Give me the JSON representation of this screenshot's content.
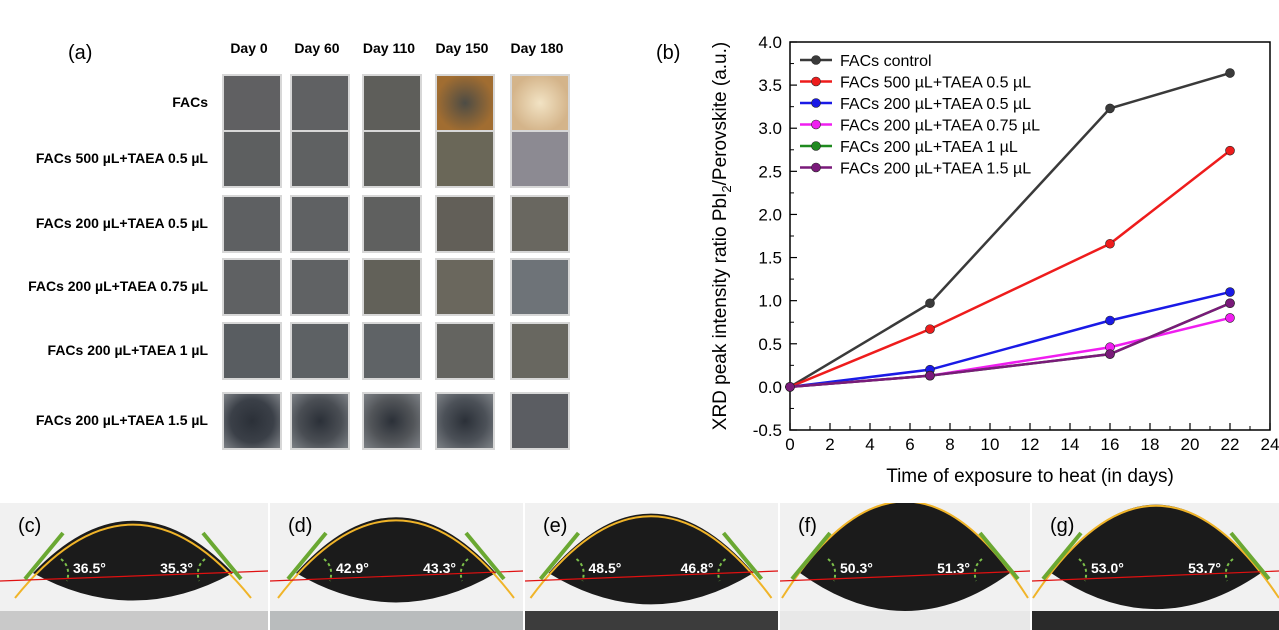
{
  "panel_a": {
    "label": "(a)",
    "days": [
      "Day 0",
      "Day 60",
      "Day 110",
      "Day 150",
      "Day 180"
    ],
    "rows": [
      {
        "label": "FACs",
        "colors": [
          "#606062",
          "#606163",
          "#5e5e5a",
          "#a16d31",
          "#d4b48a"
        ]
      },
      {
        "label": "FACs 500 µL+TAEA 0.5 µL",
        "colors": [
          "#5d5f60",
          "#5f6162",
          "#5f605d",
          "#6a6758",
          "#8c8a92"
        ]
      },
      {
        "label": "FACs 200 µL+TAEA 0.5 µL",
        "colors": [
          "#5e6062",
          "#5f6163",
          "#5f605f",
          "#625f58",
          "#696760"
        ]
      },
      {
        "label": "FACs 200 µL+TAEA 0.75 µL",
        "colors": [
          "#5f6163",
          "#606264",
          "#626159",
          "#6a675d",
          "#6e7378"
        ]
      },
      {
        "label": "FACs 200 µL+TAEA 1 µL",
        "colors": [
          "#595d61",
          "#5d6164",
          "#5f6366",
          "#646460",
          "#686760"
        ]
      },
      {
        "label": "FACs 200 µL+TAEA 1.5 µL",
        "colors": [
          "#3b4048",
          "#4a4e54",
          "#525559",
          "#4c5158",
          "#5b5d62"
        ]
      }
    ]
  },
  "panel_b": {
    "label": "(b)"
  },
  "chart_data": {
    "type": "line",
    "xlabel": "Time of exposure to heat (in days)",
    "ylabel_main": "XRD peak intensity ratio PbI",
    "ylabel_sub": "2",
    "ylabel_tail": "/Perovskite (a.u.)",
    "xlim": [
      0,
      24
    ],
    "ylim": [
      -0.5,
      4.0
    ],
    "xticks": [
      "0",
      "2",
      "4",
      "6",
      "8",
      "10",
      "12",
      "14",
      "16",
      "18",
      "20",
      "22",
      "24"
    ],
    "yticks": [
      "-0.5",
      "0.0",
      "0.5",
      "1.0",
      "1.5",
      "2.0",
      "2.5",
      "3.0",
      "3.5",
      "4.0"
    ],
    "x": [
      0,
      7,
      16,
      22
    ],
    "legend_position": "top-left",
    "series": [
      {
        "name": "FACs control",
        "color": "#3a3a3a",
        "values": [
          0.0,
          0.97,
          3.23,
          3.64
        ]
      },
      {
        "name": "FACs 500 µL+TAEA 0.5 µL",
        "color": "#ee1c1c",
        "values": [
          0.0,
          0.67,
          1.66,
          2.74
        ]
      },
      {
        "name": "FACs 200 µL+TAEA 0.5 µL",
        "color": "#1a1ae6",
        "values": [
          0.0,
          0.2,
          0.77,
          1.1
        ]
      },
      {
        "name": "FACs 200 µL+TAEA 0.75 µL",
        "color": "#f01ef0",
        "values": [
          0.0,
          0.13,
          0.46,
          0.8
        ]
      },
      {
        "name": "FACs 200 µL+TAEA 1 µL",
        "color": "#1f8a1f",
        "values": [
          0.0,
          0.13,
          0.38,
          0.97
        ]
      },
      {
        "name": "FACs 200 µL+TAEA 1.5 µL",
        "color": "#7a1a7a",
        "values": [
          0.0,
          0.13,
          0.38,
          0.97
        ]
      }
    ]
  },
  "droplets": [
    {
      "label": "(c)",
      "left_angle": "36.5°",
      "right_angle": "35.3°",
      "substrate": "#c9c9c9"
    },
    {
      "label": "(d)",
      "left_angle": "42.9°",
      "right_angle": "43.3°",
      "substrate": "#b9bcbd"
    },
    {
      "label": "(e)",
      "left_angle": "48.5°",
      "right_angle": "46.8°",
      "substrate": "#3c3c3c"
    },
    {
      "label": "(f)",
      "left_angle": "50.3°",
      "right_angle": "51.3°",
      "substrate": "#e8e8e8"
    },
    {
      "label": "(g)",
      "left_angle": "53.0°",
      "right_angle": "53.7°",
      "substrate": "#2a2a2a"
    }
  ]
}
